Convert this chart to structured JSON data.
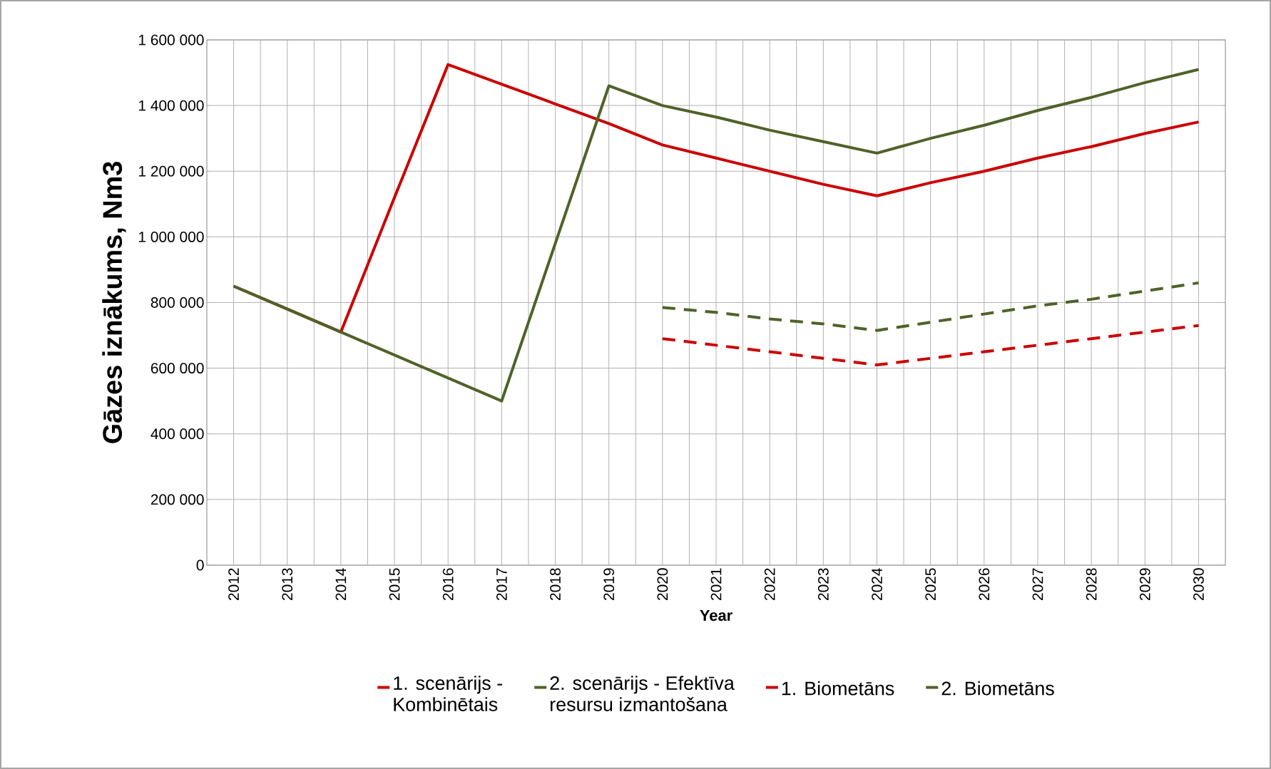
{
  "chart_data": {
    "type": "line",
    "xlabel": "Year",
    "ylabel": "Gāzes iznākums, Nm3",
    "categories": [
      "2012",
      "2013",
      "2014",
      "2015",
      "2016",
      "2017",
      "2018",
      "2019",
      "2020",
      "2021",
      "2022",
      "2023",
      "2024",
      "2025",
      "2026",
      "2027",
      "2028",
      "2029",
      "2030"
    ],
    "series": [
      {
        "name": "1. scenārijs - Kombinētais",
        "color": "#cc0000",
        "line_style": "solid",
        "values": [
          850000,
          780000,
          710000,
          1120000,
          1525000,
          1465000,
          1405000,
          1345000,
          1280000,
          1240000,
          1200000,
          1160000,
          1125000,
          1165000,
          1200000,
          1240000,
          1275000,
          1315000,
          1350000
        ]
      },
      {
        "name": "2. scenārijs - Efektīva resursu izmantošana",
        "color": "#4f6228",
        "line_style": "solid",
        "values": [
          850000,
          780000,
          710000,
          640000,
          570000,
          500000,
          980000,
          1460000,
          1400000,
          1365000,
          1325000,
          1290000,
          1255000,
          1300000,
          1340000,
          1385000,
          1425000,
          1470000,
          1510000
        ]
      },
      {
        "name": "1. Biometāns",
        "color": "#cc0000",
        "line_style": "dashed",
        "values": [
          null,
          null,
          null,
          null,
          null,
          null,
          null,
          null,
          690000,
          670000,
          650000,
          630000,
          610000,
          630000,
          650000,
          670000,
          690000,
          710000,
          730000
        ]
      },
      {
        "name": "2. Biometāns",
        "color": "#4f6228",
        "line_style": "dashed",
        "values": [
          null,
          null,
          null,
          null,
          null,
          null,
          null,
          null,
          785000,
          770000,
          750000,
          735000,
          715000,
          740000,
          765000,
          790000,
          810000,
          835000,
          860000
        ]
      }
    ],
    "ylim": [
      0,
      1600000
    ],
    "yticks": [
      0,
      {
        "value": 200000,
        "label": "200 000"
      },
      {
        "value": 400000,
        "label": "400 000"
      },
      {
        "value": 600000,
        "label": "600 000"
      },
      {
        "value": 800000,
        "label": "800 000"
      },
      {
        "value": 1000000,
        "label": "1 000 000"
      },
      {
        "value": 1200000,
        "label": "1 200 000"
      },
      {
        "value": 1400000,
        "label": "1 400 000"
      },
      {
        "value": 1600000,
        "label": "1 600 000"
      }
    ],
    "grid": true,
    "legend": "bottom",
    "marker": "none"
  }
}
